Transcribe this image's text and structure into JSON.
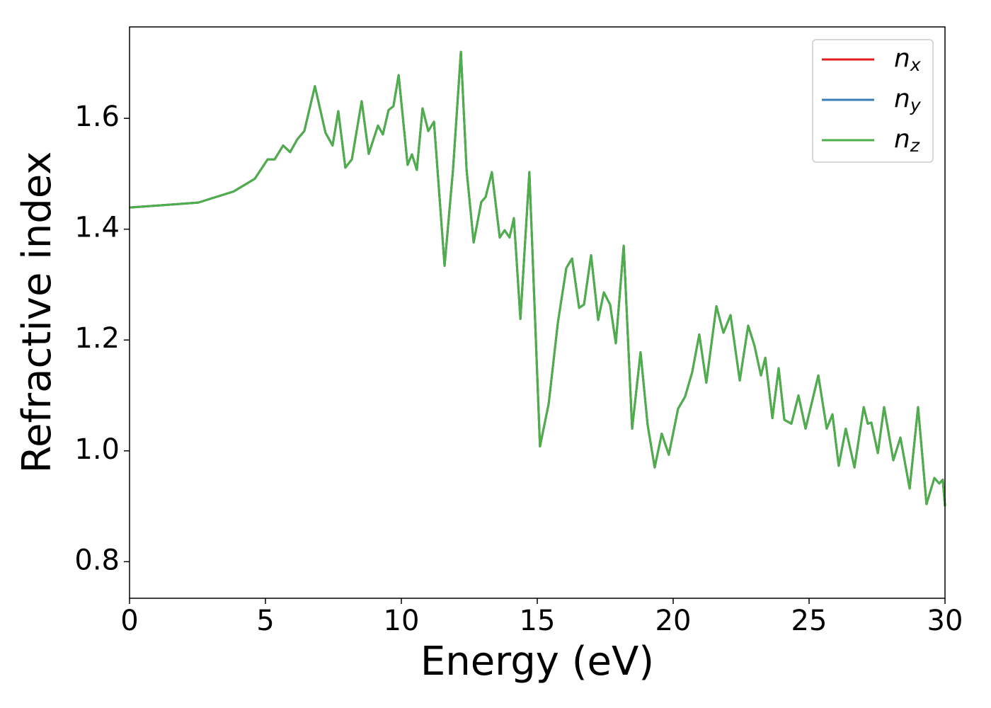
{
  "chart_data": {
    "type": "line",
    "x_label": "Energy (eV)",
    "y_label": "Refractive index",
    "xlim": [
      0,
      30
    ],
    "ylim": [
      0.734,
      1.765
    ],
    "xticks": [
      0,
      5,
      10,
      15,
      20,
      25,
      30
    ],
    "yticks": [
      0.8,
      {
        "value": 1,
        "label": "1.0"
      },
      1.2,
      1.4,
      1.6
    ],
    "grid": false,
    "legend": "upper right",
    "x": [
      0,
      2.53,
      3.83,
      4.61,
      5.08,
      5.34,
      5.65,
      5.91,
      6.17,
      6.43,
      6.82,
      7.21,
      7.47,
      7.68,
      7.94,
      8.18,
      8.54,
      8.8,
      9.14,
      9.32,
      9.53,
      9.71,
      9.9,
      10.23,
      10.39,
      10.57,
      10.78,
      10.99,
      11.2,
      11.59,
      11.9,
      12.19,
      12.4,
      12.66,
      12.94,
      13.1,
      13.33,
      13.62,
      13.8,
      13.98,
      14.14,
      14.38,
      14.71,
      15.1,
      15.42,
      15.76,
      16.07,
      16.28,
      16.54,
      16.72,
      16.98,
      17.24,
      17.45,
      17.68,
      17.89,
      18.18,
      18.49,
      18.8,
      19.06,
      19.32,
      19.58,
      19.84,
      20.18,
      20.44,
      20.7,
      20.96,
      21.22,
      21.59,
      21.85,
      22.11,
      22.45,
      22.76,
      22.99,
      23.23,
      23.39,
      23.65,
      23.88,
      24.09,
      24.35,
      24.61,
      24.87,
      25.34,
      25.65,
      25.86,
      26.09,
      26.35,
      26.67,
      27.01,
      27.16,
      27.29,
      27.53,
      27.76,
      28.1,
      28.36,
      28.7,
      29.01,
      29.32,
      29.61,
      29.79,
      29.92,
      30
    ],
    "series": [
      {
        "name": "nx",
        "color": "#e41a1c",
        "values": [
          1.439,
          1.448,
          1.468,
          1.491,
          1.526,
          1.526,
          1.551,
          1.539,
          1.562,
          1.577,
          1.658,
          1.574,
          1.551,
          1.613,
          1.511,
          1.526,
          1.631,
          1.536,
          1.587,
          1.571,
          1.615,
          1.622,
          1.678,
          1.516,
          1.535,
          1.507,
          1.618,
          1.577,
          1.594,
          1.334,
          1.507,
          1.72,
          1.507,
          1.376,
          1.449,
          1.458,
          1.503,
          1.385,
          1.398,
          1.385,
          1.42,
          1.238,
          1.503,
          1.008,
          1.085,
          1.232,
          1.33,
          1.347,
          1.258,
          1.264,
          1.353,
          1.236,
          1.286,
          1.264,
          1.194,
          1.37,
          1.04,
          1.178,
          1.047,
          0.97,
          1.031,
          0.993,
          1.076,
          1.098,
          1.142,
          1.21,
          1.123,
          1.261,
          1.213,
          1.245,
          1.127,
          1.226,
          1.19,
          1.136,
          1.168,
          1.059,
          1.149,
          1.056,
          1.049,
          1.1,
          1.04,
          1.136,
          1.04,
          1.066,
          0.973,
          1.04,
          0.97,
          1.079,
          1.049,
          1.051,
          0.996,
          1.079,
          0.983,
          1.024,
          0.932,
          1.079,
          0.904,
          0.951,
          0.941,
          0.948,
          0.9
        ]
      },
      {
        "name": "ny",
        "color": "#377eb8",
        "values": [
          1.439,
          1.448,
          1.468,
          1.491,
          1.526,
          1.526,
          1.551,
          1.539,
          1.562,
          1.577,
          1.658,
          1.574,
          1.551,
          1.613,
          1.511,
          1.526,
          1.631,
          1.536,
          1.587,
          1.571,
          1.615,
          1.622,
          1.678,
          1.516,
          1.535,
          1.507,
          1.618,
          1.577,
          1.594,
          1.334,
          1.507,
          1.72,
          1.507,
          1.376,
          1.449,
          1.458,
          1.503,
          1.385,
          1.398,
          1.385,
          1.42,
          1.238,
          1.503,
          1.008,
          1.085,
          1.232,
          1.33,
          1.347,
          1.258,
          1.264,
          1.353,
          1.236,
          1.286,
          1.264,
          1.194,
          1.37,
          1.04,
          1.178,
          1.047,
          0.97,
          1.031,
          0.993,
          1.076,
          1.098,
          1.142,
          1.21,
          1.123,
          1.261,
          1.213,
          1.245,
          1.127,
          1.226,
          1.19,
          1.136,
          1.168,
          1.059,
          1.149,
          1.056,
          1.049,
          1.1,
          1.04,
          1.136,
          1.04,
          1.066,
          0.973,
          1.04,
          0.97,
          1.079,
          1.049,
          1.051,
          0.996,
          1.079,
          0.983,
          1.024,
          0.932,
          1.079,
          0.904,
          0.951,
          0.941,
          0.948,
          0.9
        ]
      },
      {
        "name": "nz",
        "color": "#4daf4a",
        "values": [
          1.439,
          1.448,
          1.468,
          1.491,
          1.526,
          1.526,
          1.551,
          1.539,
          1.562,
          1.577,
          1.658,
          1.574,
          1.551,
          1.613,
          1.511,
          1.526,
          1.631,
          1.536,
          1.587,
          1.571,
          1.615,
          1.622,
          1.678,
          1.516,
          1.535,
          1.507,
          1.618,
          1.577,
          1.594,
          1.334,
          1.507,
          1.72,
          1.507,
          1.376,
          1.449,
          1.458,
          1.503,
          1.385,
          1.398,
          1.385,
          1.42,
          1.238,
          1.503,
          1.008,
          1.085,
          1.232,
          1.33,
          1.347,
          1.258,
          1.264,
          1.353,
          1.236,
          1.286,
          1.264,
          1.194,
          1.37,
          1.04,
          1.178,
          1.047,
          0.97,
          1.031,
          0.993,
          1.076,
          1.098,
          1.142,
          1.21,
          1.123,
          1.261,
          1.213,
          1.245,
          1.127,
          1.226,
          1.19,
          1.136,
          1.168,
          1.059,
          1.149,
          1.056,
          1.049,
          1.1,
          1.04,
          1.136,
          1.04,
          1.066,
          0.973,
          1.04,
          0.97,
          1.079,
          1.049,
          1.051,
          0.996,
          1.079,
          0.983,
          1.024,
          0.932,
          1.079,
          0.904,
          0.951,
          0.941,
          0.948,
          0.9
        ]
      }
    ]
  }
}
